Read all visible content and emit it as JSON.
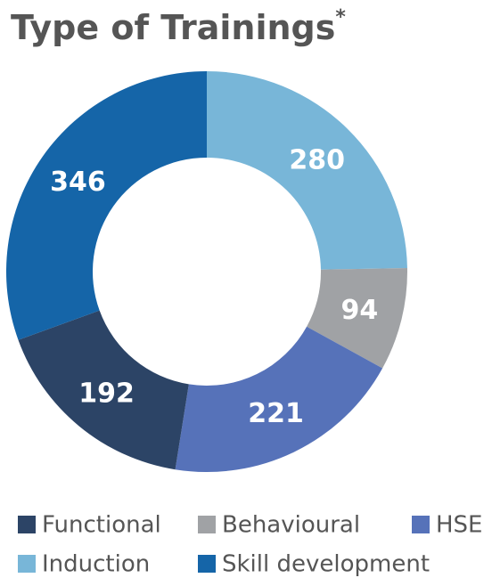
{
  "chart_data": {
    "type": "donut",
    "title": "Type of Trainings",
    "title_note": "*",
    "categories": [
      "Induction",
      "Behavioural",
      "HSE",
      "Functional",
      "Skill development"
    ],
    "values": [
      280,
      94,
      221,
      192,
      346
    ],
    "colors": [
      "#78b6d8",
      "#a0a2a5",
      "#5672b9",
      "#2c4466",
      "#1565a8"
    ]
  }
}
